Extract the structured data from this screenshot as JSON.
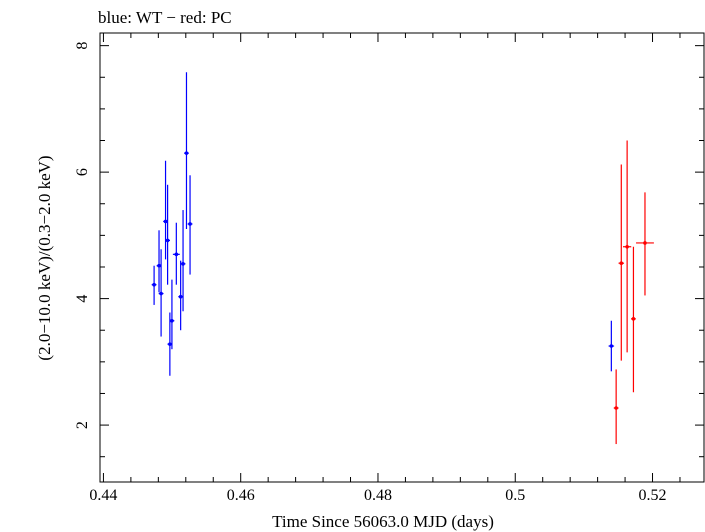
{
  "chart_data": {
    "type": "scatter",
    "title": "blue: WT − red: PC",
    "xlabel": "Time Since 56063.0 MJD (days)",
    "ylabel": "(2.0−10.0 keV)/(0.3−2.0 keV)",
    "xlim": [
      0.4395,
      0.5275
    ],
    "ylim": [
      1.1,
      8.2
    ],
    "xticks": [
      {
        "value": 0.44,
        "label": "0.44"
      },
      {
        "value": 0.46,
        "label": "0.46"
      },
      {
        "value": 0.48,
        "label": "0.48"
      },
      {
        "value": 0.5,
        "label": "0.5"
      },
      {
        "value": 0.52,
        "label": "0.52"
      }
    ],
    "yticks": [
      {
        "value": 2,
        "label": "2"
      },
      {
        "value": 4,
        "label": "4"
      },
      {
        "value": 6,
        "label": "6"
      },
      {
        "value": 8,
        "label": "8"
      }
    ],
    "series": [
      {
        "name": "WT",
        "color": "#0000ff",
        "points": [
          {
            "x": 0.44738,
            "y": 4.22,
            "xerr": 0.00035,
            "ylo": 3.9,
            "yhi": 4.52
          },
          {
            "x": 0.4481,
            "y": 4.52,
            "xerr": 0.00035,
            "ylo": 4.1,
            "yhi": 5.08
          },
          {
            "x": 0.4484,
            "y": 4.08,
            "xerr": 0.00035,
            "ylo": 3.4,
            "yhi": 4.78
          },
          {
            "x": 0.44905,
            "y": 5.22,
            "xerr": 0.00035,
            "ylo": 4.62,
            "yhi": 6.18
          },
          {
            "x": 0.44935,
            "y": 4.92,
            "xerr": 0.00035,
            "ylo": 4.22,
            "yhi": 5.8
          },
          {
            "x": 0.44968,
            "y": 3.28,
            "xerr": 0.00035,
            "ylo": 2.78,
            "yhi": 3.78
          },
          {
            "x": 0.44998,
            "y": 3.65,
            "xerr": 0.00035,
            "ylo": 3.2,
            "yhi": 4.3
          },
          {
            "x": 0.45062,
            "y": 4.7,
            "xerr": 0.0005,
            "ylo": 4.22,
            "yhi": 5.2
          },
          {
            "x": 0.45125,
            "y": 4.03,
            "xerr": 0.00035,
            "ylo": 3.5,
            "yhi": 4.6
          },
          {
            "x": 0.4516,
            "y": 4.55,
            "xerr": 0.00035,
            "ylo": 3.8,
            "yhi": 5.4
          },
          {
            "x": 0.4521,
            "y": 6.3,
            "xerr": 0.00035,
            "ylo": 5.1,
            "yhi": 7.58
          },
          {
            "x": 0.45262,
            "y": 5.18,
            "xerr": 0.00035,
            "ylo": 4.38,
            "yhi": 5.95
          },
          {
            "x": 0.514,
            "y": 3.25,
            "xerr": 0.0004,
            "ylo": 2.85,
            "yhi": 3.65
          }
        ]
      },
      {
        "name": "PC",
        "color": "#ff0000",
        "points": [
          {
            "x": 0.5147,
            "y": 2.27,
            "xerr": 0.00035,
            "ylo": 1.7,
            "yhi": 2.88
          },
          {
            "x": 0.51545,
            "y": 4.56,
            "xerr": 0.0004,
            "ylo": 3.02,
            "yhi": 6.12
          },
          {
            "x": 0.5163,
            "y": 4.82,
            "xerr": 0.0006,
            "ylo": 3.15,
            "yhi": 6.5
          },
          {
            "x": 0.51722,
            "y": 3.68,
            "xerr": 0.00035,
            "ylo": 2.52,
            "yhi": 4.82
          },
          {
            "x": 0.5189,
            "y": 4.88,
            "xerr": 0.0013,
            "ylo": 4.05,
            "yhi": 5.68
          }
        ]
      }
    ]
  }
}
